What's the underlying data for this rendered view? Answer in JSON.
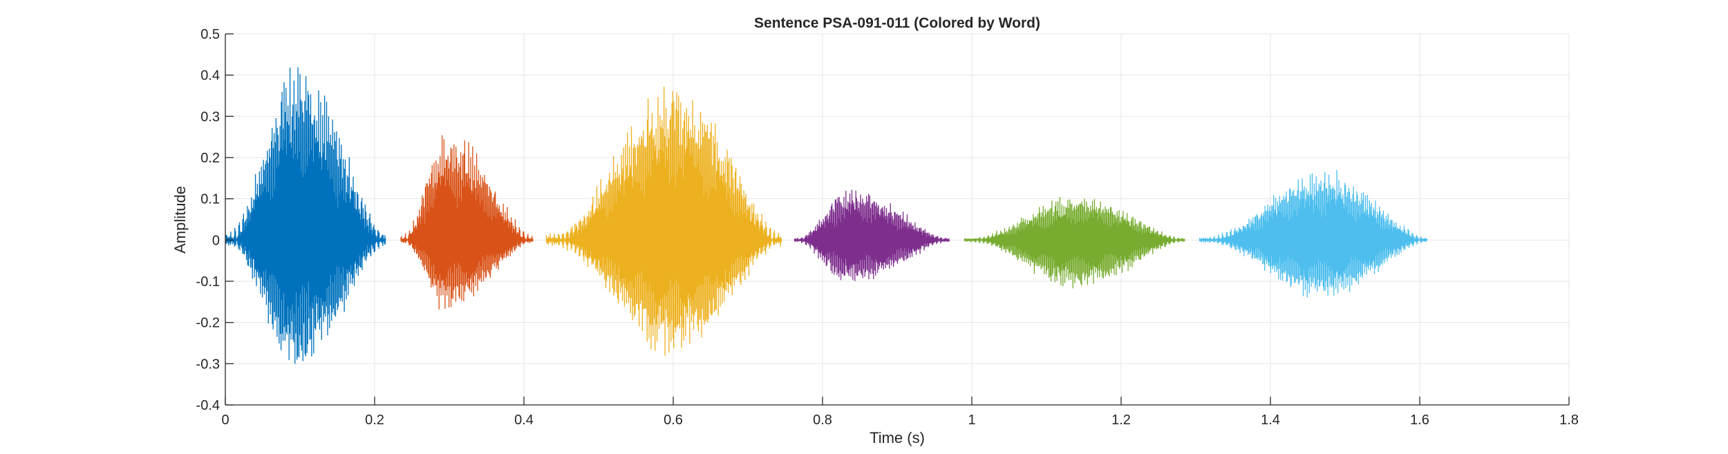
{
  "chart_data": {
    "type": "line",
    "title": "Sentence PSA-091-011 (Colored by Word)",
    "xlabel": "Time (s)",
    "ylabel": "Amplitude",
    "xlim": [
      0,
      1.8
    ],
    "ylim": [
      -0.4,
      0.5
    ],
    "xticks": [
      0,
      0.2,
      0.4,
      0.6,
      0.8,
      1,
      1.2,
      1.4,
      1.6,
      1.8
    ],
    "xtick_labels": [
      "0",
      "0.2",
      "0.4",
      "0.6",
      "0.8",
      "1",
      "1.2",
      "1.4",
      "1.6",
      "1.8"
    ],
    "yticks": [
      -0.4,
      -0.3,
      -0.2,
      -0.1,
      0,
      0.1,
      0.2,
      0.3,
      0.4,
      0.5
    ],
    "ytick_labels": [
      "-0.4",
      "-0.3",
      "-0.2",
      "-0.1",
      "0",
      "0.1",
      "0.2",
      "0.3",
      "0.4",
      "0.5"
    ],
    "grid": true,
    "series": [
      {
        "color": "#0072BD",
        "t_start": 0.0,
        "t_end": 0.215,
        "peak_time": 0.095,
        "max_amp": 0.48,
        "min_amp": -0.35
      },
      {
        "color": "#D95319",
        "t_start": 0.235,
        "t_end": 0.412,
        "peak_time": 0.295,
        "max_amp": 0.29,
        "min_amp": -0.19
      },
      {
        "color": "#EDB120",
        "t_start": 0.43,
        "t_end": 0.745,
        "peak_time": 0.6,
        "max_amp": 0.42,
        "min_amp": -0.31
      },
      {
        "color": "#7E2F8E",
        "t_start": 0.762,
        "t_end": 0.97,
        "peak_time": 0.835,
        "max_amp": 0.14,
        "min_amp": -0.12
      },
      {
        "color": "#77AC30",
        "t_start": 0.99,
        "t_end": 1.285,
        "peak_time": 1.14,
        "max_amp": 0.12,
        "min_amp": -0.13
      },
      {
        "color": "#4DBEEE",
        "t_start": 1.305,
        "t_end": 1.61,
        "peak_time": 1.47,
        "max_amp": 0.19,
        "min_amp": -0.16
      }
    ]
  }
}
